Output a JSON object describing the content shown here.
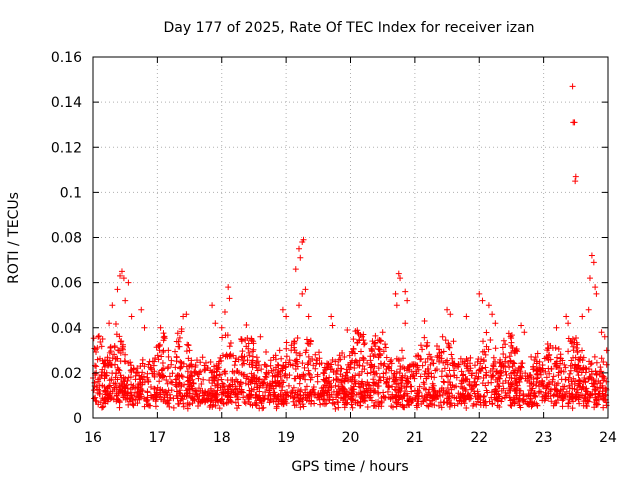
{
  "chart_data": {
    "type": "scatter",
    "title": "Day 177 of 2025, Rate Of TEC Index for receiver izan",
    "xlabel": "GPS time / hours",
    "ylabel": "ROTI / TECUs",
    "xlim": [
      16,
      24
    ],
    "ylim": [
      0,
      0.16
    ],
    "xticks": [
      16,
      17,
      18,
      19,
      20,
      21,
      22,
      23,
      24
    ],
    "xtick_labels": [
      "16",
      "17",
      "18",
      "19",
      "20",
      "21",
      "22",
      "23",
      "24"
    ],
    "yticks": [
      0,
      0.02,
      0.04,
      0.06,
      0.08,
      0.1,
      0.12,
      0.14,
      0.16
    ],
    "ytick_labels": [
      "0",
      "0.02",
      "0.04",
      "0.06",
      "0.08",
      "0.1",
      "0.12",
      "0.14",
      "0.16"
    ],
    "grid": true,
    "marker": "+",
    "color": "#ff0000",
    "series": [
      {
        "name": "ROTI",
        "note": "dense scatter; baseline band ~0.005-0.035 TECU over 16-24 h",
        "points": [
          [
            16.45,
            0.065
          ],
          [
            16.42,
            0.063
          ],
          [
            16.48,
            0.062
          ],
          [
            16.55,
            0.06
          ],
          [
            16.38,
            0.057
          ],
          [
            16.3,
            0.05
          ],
          [
            16.5,
            0.052
          ],
          [
            16.6,
            0.045
          ],
          [
            16.25,
            0.042
          ],
          [
            16.15,
            0.035
          ],
          [
            16.75,
            0.048
          ],
          [
            16.8,
            0.04
          ],
          [
            17.05,
            0.04
          ],
          [
            17.4,
            0.045
          ],
          [
            17.45,
            0.046
          ],
          [
            17.85,
            0.05
          ],
          [
            17.9,
            0.042
          ],
          [
            18.1,
            0.058
          ],
          [
            18.12,
            0.053
          ],
          [
            18.05,
            0.047
          ],
          [
            18.0,
            0.04
          ],
          [
            18.3,
            0.035
          ],
          [
            18.6,
            0.036
          ],
          [
            18.95,
            0.048
          ],
          [
            19.0,
            0.045
          ],
          [
            19.2,
            0.075
          ],
          [
            19.25,
            0.078
          ],
          [
            19.27,
            0.079
          ],
          [
            19.22,
            0.071
          ],
          [
            19.15,
            0.066
          ],
          [
            19.3,
            0.057
          ],
          [
            19.25,
            0.055
          ],
          [
            19.2,
            0.05
          ],
          [
            19.35,
            0.045
          ],
          [
            19.7,
            0.045
          ],
          [
            19.72,
            0.041
          ],
          [
            19.95,
            0.039
          ],
          [
            20.2,
            0.037
          ],
          [
            20.5,
            0.038
          ],
          [
            20.75,
            0.064
          ],
          [
            20.77,
            0.062
          ],
          [
            20.7,
            0.055
          ],
          [
            20.72,
            0.05
          ],
          [
            20.85,
            0.056
          ],
          [
            20.88,
            0.052
          ],
          [
            20.85,
            0.042
          ],
          [
            21.15,
            0.043
          ],
          [
            21.5,
            0.048
          ],
          [
            21.55,
            0.046
          ],
          [
            21.8,
            0.045
          ],
          [
            22.0,
            0.055
          ],
          [
            22.05,
            0.052
          ],
          [
            22.15,
            0.05
          ],
          [
            22.2,
            0.046
          ],
          [
            22.25,
            0.042
          ],
          [
            22.65,
            0.041
          ],
          [
            22.7,
            0.038
          ],
          [
            23.2,
            0.04
          ],
          [
            23.35,
            0.045
          ],
          [
            23.38,
            0.042
          ],
          [
            23.45,
            0.147
          ],
          [
            23.48,
            0.131
          ],
          [
            23.46,
            0.131
          ],
          [
            23.5,
            0.107
          ],
          [
            23.49,
            0.105
          ],
          [
            23.6,
            0.045
          ],
          [
            23.75,
            0.072
          ],
          [
            23.78,
            0.069
          ],
          [
            23.72,
            0.062
          ],
          [
            23.8,
            0.058
          ],
          [
            23.82,
            0.055
          ],
          [
            23.7,
            0.048
          ],
          [
            23.9,
            0.038
          ],
          [
            23.95,
            0.036
          ],
          [
            23.98,
            0.03
          ],
          [
            16.05,
            0.02
          ],
          [
            16.1,
            0.012
          ],
          [
            16.2,
            0.008
          ],
          [
            16.35,
            0.018
          ],
          [
            16.5,
            0.025
          ],
          [
            16.7,
            0.015
          ],
          [
            16.9,
            0.01
          ],
          [
            17.1,
            0.022
          ],
          [
            17.3,
            0.014
          ],
          [
            17.5,
            0.03
          ],
          [
            17.7,
            0.012
          ],
          [
            17.95,
            0.024
          ],
          [
            18.2,
            0.016
          ],
          [
            18.45,
            0.01
          ],
          [
            18.7,
            0.02
          ],
          [
            18.9,
            0.03
          ],
          [
            19.1,
            0.012
          ],
          [
            19.4,
            0.018
          ],
          [
            19.6,
            0.008
          ],
          [
            19.85,
            0.022
          ],
          [
            20.05,
            0.014
          ],
          [
            20.3,
            0.01
          ],
          [
            20.55,
            0.02
          ],
          [
            20.8,
            0.03
          ],
          [
            21.05,
            0.012
          ],
          [
            21.3,
            0.018
          ],
          [
            21.6,
            0.034
          ],
          [
            21.85,
            0.016
          ],
          [
            22.1,
            0.028
          ],
          [
            22.35,
            0.012
          ],
          [
            22.55,
            0.02
          ],
          [
            22.8,
            0.01
          ],
          [
            23.05,
            0.018
          ],
          [
            23.3,
            0.014
          ],
          [
            23.55,
            0.022
          ],
          [
            23.8,
            0.012
          ],
          [
            23.95,
            0.008
          ]
        ]
      }
    ]
  }
}
